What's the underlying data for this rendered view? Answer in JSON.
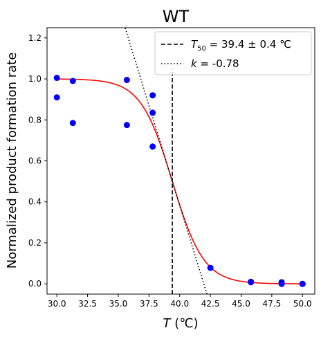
{
  "chart_data": {
    "type": "scatter",
    "title": "WT",
    "xlabel_var": "T",
    "xlabel_unit": " (℃)",
    "ylabel": "Normalized product formation rate",
    "xlim": [
      29.2,
      51.0
    ],
    "ylim": [
      -0.05,
      1.25
    ],
    "xticks": [
      30.0,
      32.5,
      35.0,
      37.5,
      40.0,
      42.5,
      45.0,
      47.5,
      50.0
    ],
    "xtick_labels": [
      "30.0",
      "32.5",
      "35.0",
      "37.5",
      "40.0",
      "42.5",
      "45.0",
      "47.5",
      "50.0"
    ],
    "yticks": [
      0.0,
      0.2,
      0.4,
      0.6,
      0.8,
      1.0,
      1.2
    ],
    "ytick_labels": [
      "0.0",
      "0.2",
      "0.4",
      "0.6",
      "0.8",
      "1.0",
      "1.2"
    ],
    "points": {
      "color": "#0000ff",
      "x": [
        30.0,
        30.0,
        31.3,
        31.3,
        35.7,
        35.7,
        37.8,
        37.8,
        37.8,
        42.5,
        45.8,
        45.8,
        48.3,
        48.3,
        50.0,
        50.0
      ],
      "y": [
        1.005,
        0.91,
        0.99,
        0.785,
        0.995,
        0.775,
        0.92,
        0.835,
        0.67,
        0.078,
        0.01,
        0.008,
        0.008,
        0.0,
        0.0,
        0.0
      ]
    },
    "fit_curve": {
      "color": "#ff0000",
      "T50": 39.4,
      "k": -0.78,
      "x_range": [
        30.0,
        50.0
      ]
    },
    "t50_line": {
      "x": 39.4,
      "y_range": [
        -0.05,
        1.05
      ],
      "style": "dashed",
      "color": "#000000"
    },
    "slope_line": {
      "x0": 39.4,
      "y0": 0.5,
      "k": -0.78,
      "x_range": [
        34.0,
        42.4
      ],
      "style": "dotted",
      "color": "#000000"
    },
    "legend": {
      "placement": "top-right",
      "t50_var": "T",
      "t50_sub": "50",
      "t50_text": " = 39.4 ± 0.4 ℃",
      "k_var": "k",
      "k_text": " = -0.78"
    }
  }
}
